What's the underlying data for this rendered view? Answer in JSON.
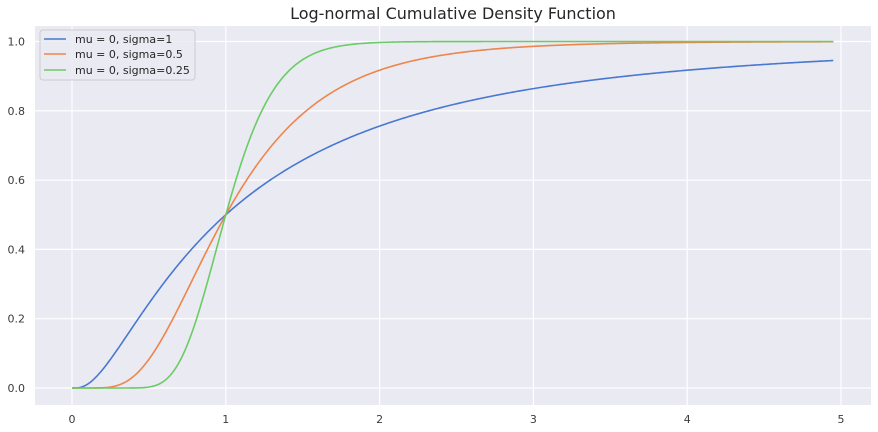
{
  "chart_data": {
    "type": "line",
    "title": "Log-normal Cumulative Density Function",
    "xlabel": "",
    "ylabel": "",
    "xlim": [
      -0.25,
      5.2
    ],
    "ylim": [
      -0.05,
      1.05
    ],
    "xticks": [
      "0",
      "1",
      "2",
      "3",
      "4",
      "5"
    ],
    "yticks": [
      "0.0",
      "0.2",
      "0.4",
      "0.6",
      "0.8",
      "1.0"
    ],
    "grid": true,
    "legend_position": "upper left",
    "x_range": {
      "start": 0.0,
      "stop": 4.95,
      "step": 0.05
    },
    "sample_x": [
      0,
      0.25,
      0.5,
      0.75,
      1.0,
      1.25,
      1.5,
      2.0,
      2.5,
      3.0,
      3.5,
      4.0,
      4.5,
      4.95
    ],
    "series": [
      {
        "name": "mu = 0, sigma=1",
        "mu": 0,
        "sigma": 1,
        "color": "#4878d0",
        "values": [
          0,
          0.083,
          0.244,
          0.387,
          0.5,
          0.588,
          0.657,
          0.756,
          0.82,
          0.864,
          0.895,
          0.917,
          0.934,
          0.945
        ]
      },
      {
        "name": "mu = 0, sigma=0.5",
        "mu": 0,
        "sigma": 0.5,
        "color": "#ee854a",
        "values": [
          0,
          0.003,
          0.083,
          0.283,
          0.5,
          0.672,
          0.791,
          0.917,
          0.967,
          0.986,
          0.994,
          0.997,
          0.999,
          0.999
        ]
      },
      {
        "name": "mu = 0, sigma=0.25",
        "mu": 0,
        "sigma": 0.25,
        "color": "#6acc64",
        "values": [
          0,
          0.0,
          0.003,
          0.125,
          0.5,
          0.814,
          0.948,
          0.997,
          1.0,
          1.0,
          1.0,
          1.0,
          1.0,
          1.0
        ]
      }
    ]
  },
  "style": {
    "plot_bg": "#eaeaf2",
    "grid_color": "#ffffff",
    "legend_bg": "#eaeaf2",
    "legend_border": "#cccccc"
  }
}
